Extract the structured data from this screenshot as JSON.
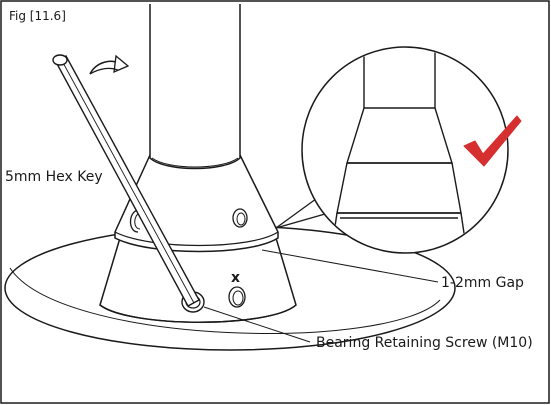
{
  "figure_label": "Fig [11.6]",
  "labels": {
    "hex_key": "5mm Hex Key",
    "gap": "1-2mm Gap",
    "screw": "Bearing Retaining Screw (M10)"
  },
  "marks": {
    "cross": "x"
  },
  "colors": {
    "line": "#1a1a1a",
    "check": "#d62f2f",
    "background": "#ffffff"
  },
  "icons": {
    "rotate": "rotate-arrow-icon",
    "check": "check-icon"
  }
}
